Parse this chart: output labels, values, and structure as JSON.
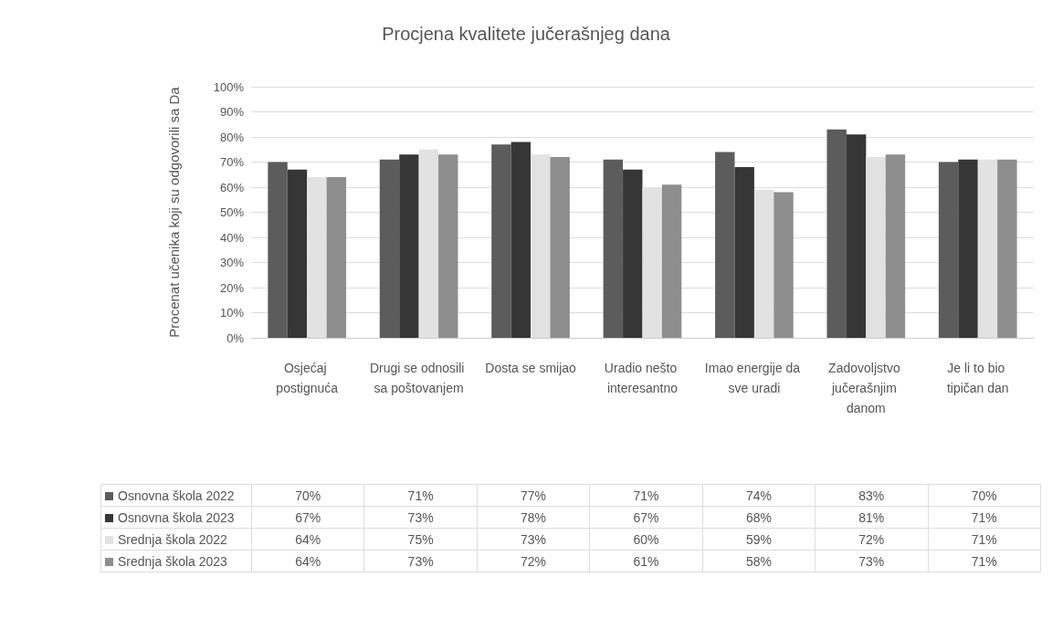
{
  "chart_data": {
    "type": "bar",
    "title": "Procjena kvalitete jučerašnjeg dana",
    "ylabel": "Procenat učenika koji su odgovorili sa Da",
    "categories": [
      "Osjećaj postignuća",
      "Drugi se odnosili sa poštovanjem",
      "Dosta se smijao",
      "Uradio nešto interesantno",
      "Imao energije da sve uradi",
      "Zadovoljstvo jučerašnjim danom",
      "Je li to bio tipičan dan"
    ],
    "series": [
      {
        "name": "Osnovna škola 2022",
        "color": "#5c5c5c",
        "values": [
          70,
          71,
          77,
          71,
          74,
          83,
          70
        ],
        "value_labels": [
          "70%",
          "71%",
          "77%",
          "71%",
          "74%",
          "83%",
          "70%"
        ]
      },
      {
        "name": "Osnovna škola 2023",
        "color": "#363636",
        "values": [
          67,
          73,
          78,
          67,
          68,
          81,
          71
        ],
        "value_labels": [
          "67%",
          "73%",
          "78%",
          "67%",
          "68%",
          "81%",
          "71%"
        ]
      },
      {
        "name": "Srednja škola 2022",
        "color": "#e2e2e2",
        "values": [
          64,
          75,
          73,
          60,
          59,
          72,
          71
        ],
        "value_labels": [
          "64%",
          "75%",
          "73%",
          "60%",
          "59%",
          "72%",
          "71%"
        ]
      },
      {
        "name": "Srednja škola 2023",
        "color": "#8e8e8e",
        "values": [
          64,
          73,
          72,
          61,
          58,
          73,
          71
        ],
        "value_labels": [
          "64%",
          "73%",
          "72%",
          "61%",
          "58%",
          "73%",
          "71%"
        ]
      }
    ],
    "ylim": [
      0,
      100
    ],
    "yticks": [
      {
        "value": 0,
        "label": "0%"
      },
      {
        "value": 10,
        "label": "10%"
      },
      {
        "value": 20,
        "label": "20%"
      },
      {
        "value": 30,
        "label": "30%"
      },
      {
        "value": 40,
        "label": "40%"
      },
      {
        "value": 50,
        "label": "50%"
      },
      {
        "value": 60,
        "label": "60%"
      },
      {
        "value": 70,
        "label": "70%"
      },
      {
        "value": 80,
        "label": "80%"
      },
      {
        "value": 90,
        "label": "90%"
      },
      {
        "value": 100,
        "label": "100%"
      }
    ],
    "grid": "y",
    "legend": "bottom left"
  }
}
